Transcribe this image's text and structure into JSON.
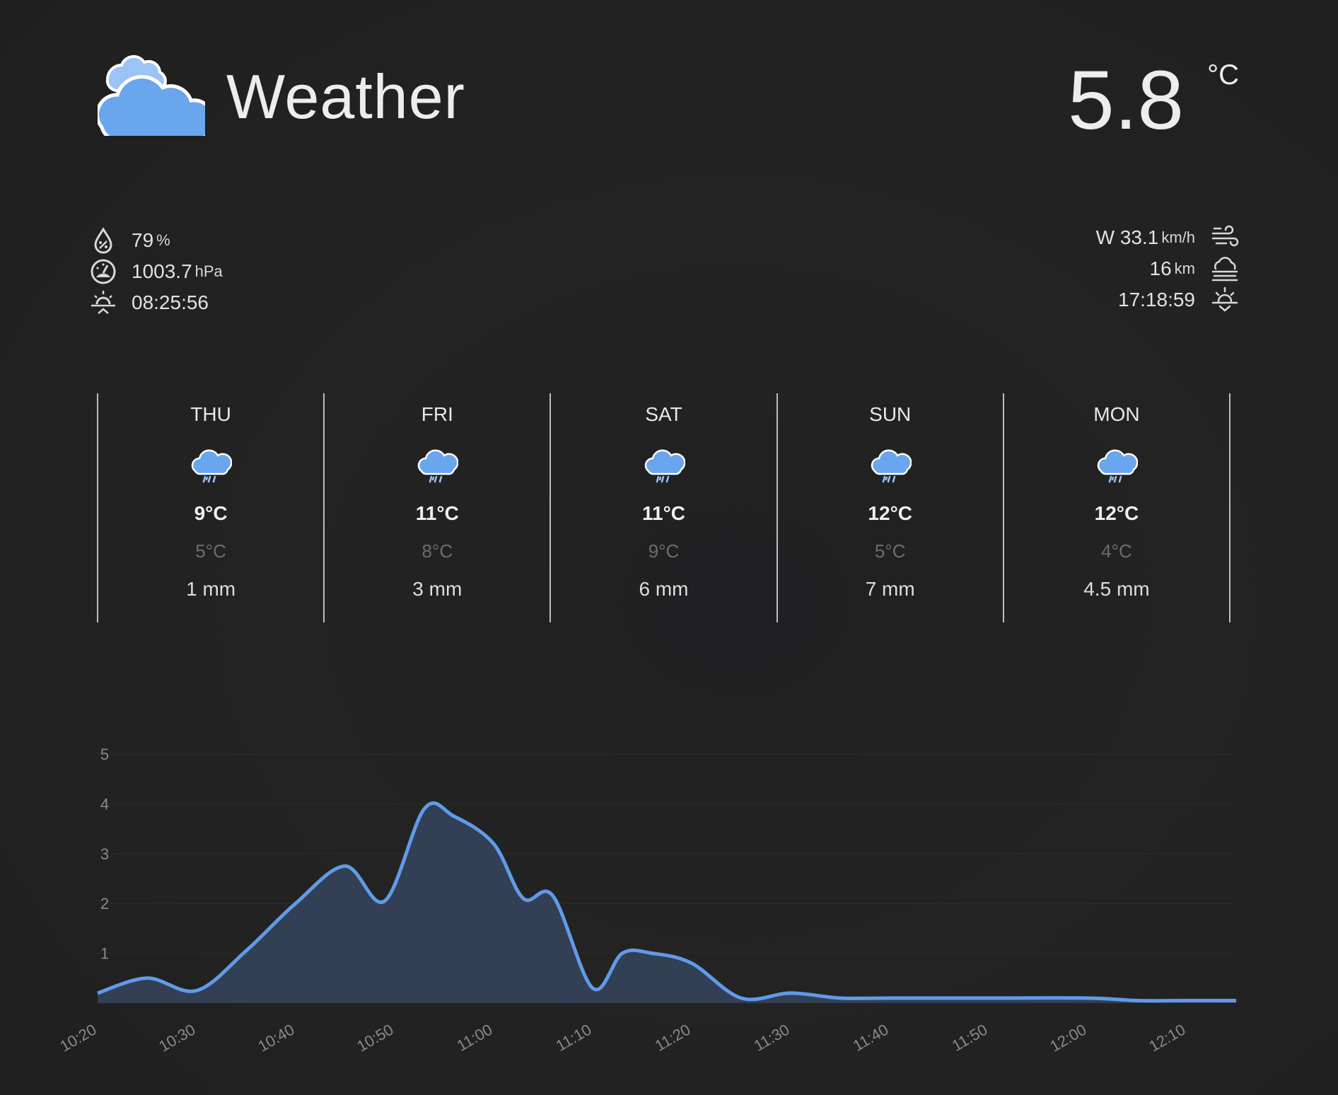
{
  "header": {
    "title": "Weather",
    "icon": "cloud-icon",
    "temperature": "5.8",
    "temperature_unit": "°C"
  },
  "stats_left": [
    {
      "icon": "humidity-icon",
      "value": "79",
      "unit": "%"
    },
    {
      "icon": "pressure-gauge-icon",
      "value": "1003.7",
      "unit": "hPa"
    },
    {
      "icon": "sunrise-icon",
      "value": "08:25:56",
      "unit": ""
    }
  ],
  "stats_right": [
    {
      "icon": "wind-icon",
      "value": "W 33.1",
      "unit": "km/h"
    },
    {
      "icon": "visibility-fog-icon",
      "value": "16",
      "unit": "km"
    },
    {
      "icon": "sunset-icon",
      "value": "17:18:59",
      "unit": ""
    }
  ],
  "forecast": [
    {
      "day": "THU",
      "icon": "rain-cloud-icon",
      "high": "9°C",
      "low": "5°C",
      "precip": "1 mm"
    },
    {
      "day": "FRI",
      "icon": "rain-cloud-icon",
      "high": "11°C",
      "low": "8°C",
      "precip": "3 mm"
    },
    {
      "day": "SAT",
      "icon": "rain-cloud-icon",
      "high": "11°C",
      "low": "9°C",
      "precip": "6 mm"
    },
    {
      "day": "SUN",
      "icon": "rain-cloud-icon",
      "high": "12°C",
      "low": "5°C",
      "precip": "7 mm"
    },
    {
      "day": "MON",
      "icon": "rain-cloud-icon",
      "high": "12°C",
      "low": "4°C",
      "precip": "4.5 mm"
    }
  ],
  "colors": {
    "accent": "#5f9be8",
    "area_fill": "#35425a",
    "text": "#e6e6e6",
    "muted": "#6d6d6d"
  },
  "chart_data": {
    "type": "area",
    "title": "",
    "xlabel": "",
    "ylabel": "",
    "ylim": [
      0,
      5
    ],
    "yticks": [
      "1",
      "2",
      "3",
      "4",
      "5"
    ],
    "xticks": [
      "10:20",
      "10:30",
      "10:40",
      "10:50",
      "11:00",
      "11:10",
      "11:20",
      "11:30",
      "11:40",
      "11:50",
      "12:00",
      "12:10"
    ],
    "grid": true,
    "series": [
      {
        "x": [
          "10:20",
          "10:25",
          "10:30",
          "10:35",
          "10:40",
          "10:45",
          "10:49",
          "10:53",
          "10:56",
          "11:00",
          "11:03",
          "11:06",
          "11:10",
          "11:13",
          "11:16",
          "11:20",
          "11:25",
          "11:30",
          "11:35",
          "11:40",
          "11:50",
          "12:00",
          "12:05",
          "12:10",
          "12:15"
        ],
        "values": [
          0.2,
          0.5,
          0.25,
          1.05,
          2.0,
          2.75,
          2.05,
          3.9,
          3.75,
          3.2,
          2.1,
          2.15,
          0.3,
          1.0,
          1.0,
          0.8,
          0.1,
          0.2,
          0.1,
          0.1,
          0.1,
          0.1,
          0.05,
          0.05,
          0.05
        ]
      }
    ]
  }
}
